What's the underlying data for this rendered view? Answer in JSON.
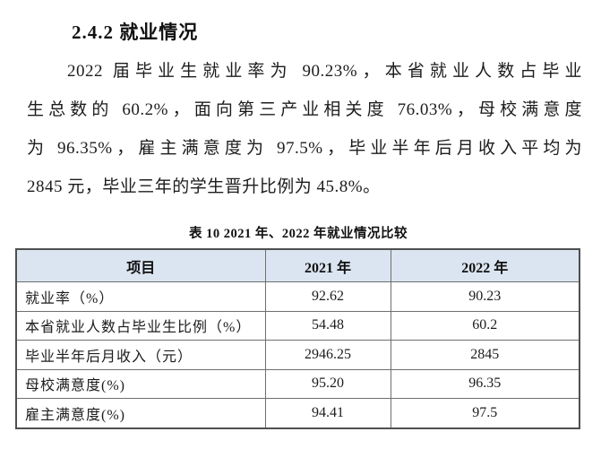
{
  "page": {
    "background": "#ffffff",
    "text_color": "#1c1c1c"
  },
  "heading": {
    "text": "2.4.2 就业情况"
  },
  "paragraph": {
    "lines": [
      "2022 届毕业生就业率为 90.23%，本省就业人数占毕业",
      "生总数的 60.2%，面向第三产业相关度 76.03%，母校满意度",
      "为 96.35%，雇主满意度为 97.5%，毕业半年后月收入平均为",
      "2845 元，毕业三年的学生晋升比例为 45.8%。"
    ]
  },
  "table": {
    "caption": "表 10 2021 年、2022 年就业情况比较",
    "style": {
      "header_bg": "#dbe5f1",
      "border_color": "#6f6f6f"
    },
    "columns": [
      "项目",
      "2021 年",
      "2022 年"
    ],
    "rows": [
      {
        "label": "就业率（%）",
        "y2021": "92.62",
        "y2022": "90.23"
      },
      {
        "label": "本省就业人数占毕业生比例（%）",
        "y2021": "54.48",
        "y2022": "60.2"
      },
      {
        "label": "毕业半年后月收入（元）",
        "y2021": "2946.25",
        "y2022": "2845"
      },
      {
        "label": "母校满意度(%)",
        "y2021": "95.20",
        "y2022": "96.35"
      },
      {
        "label": "雇主满意度(%)",
        "y2021": "94.41",
        "y2022": "97.5"
      }
    ]
  }
}
